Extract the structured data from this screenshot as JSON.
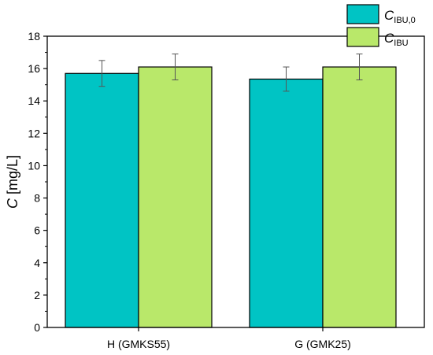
{
  "chart_data": {
    "type": "bar",
    "categories": [
      "H (GMKS55)",
      "G (GMK25)"
    ],
    "series": [
      {
        "name": "C_IBU,0",
        "legend_main": "C",
        "legend_sub": "IBU,0",
        "color": "#00c4c4",
        "values": [
          15.7,
          15.35
        ],
        "errors": [
          0.8,
          0.75
        ]
      },
      {
        "name": "C_IBU",
        "legend_main": "C",
        "legend_sub": "IBU",
        "color": "#b9e86a",
        "values": [
          16.1,
          16.1
        ],
        "errors": [
          0.8,
          0.8
        ]
      }
    ],
    "ylabel_main": "C",
    "ylabel_unit": " [mg/L]",
    "ylim": [
      0,
      18
    ],
    "yticks": [
      "0",
      "2",
      "4",
      "6",
      "8",
      "10",
      "12",
      "14",
      "16",
      "18"
    ],
    "grid": false,
    "legend_position": "top-right"
  }
}
